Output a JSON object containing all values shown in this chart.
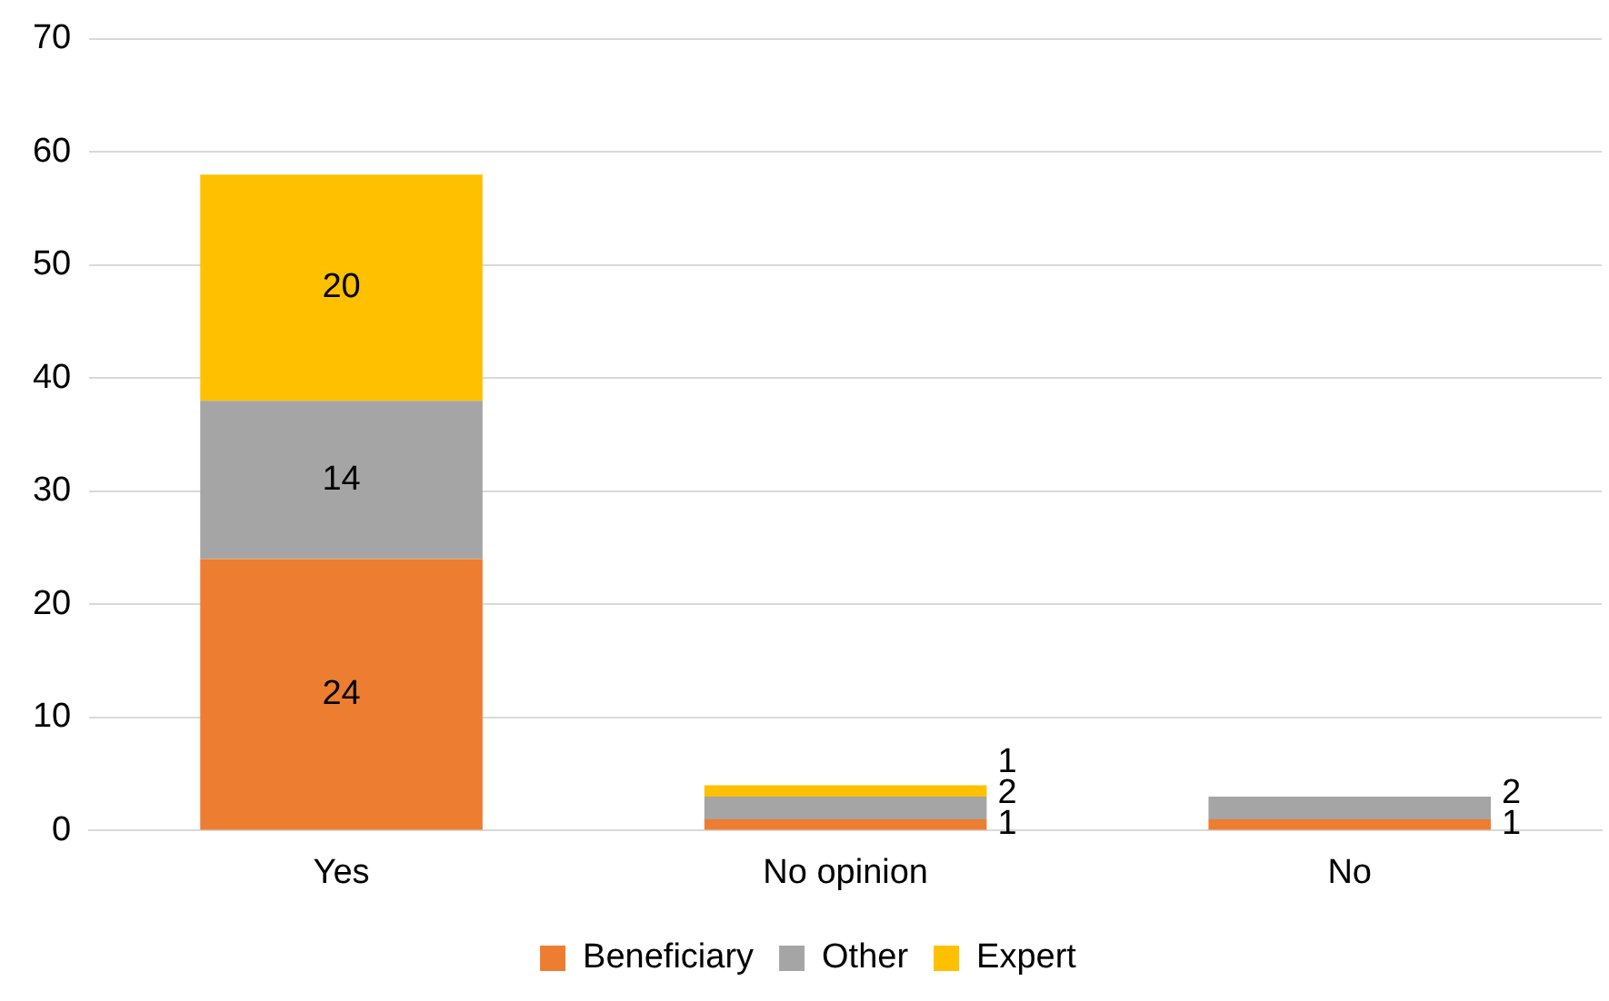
{
  "chart_data": {
    "type": "bar",
    "stacked": true,
    "categories": [
      "Yes",
      "No opinion",
      "No"
    ],
    "series": [
      {
        "name": "Beneficiary",
        "color": "#ed7d31",
        "values": [
          24,
          1,
          1
        ]
      },
      {
        "name": "Other",
        "color": "#a5a5a5",
        "values": [
          14,
          2,
          2
        ]
      },
      {
        "name": "Expert",
        "color": "#ffc000",
        "values": [
          20,
          1,
          null
        ]
      }
    ],
    "ylim": [
      0,
      70
    ],
    "yticks": [
      0,
      10,
      20,
      30,
      40,
      50,
      60,
      70
    ],
    "grid": "y",
    "legend": "bottom",
    "data_labels": true
  }
}
